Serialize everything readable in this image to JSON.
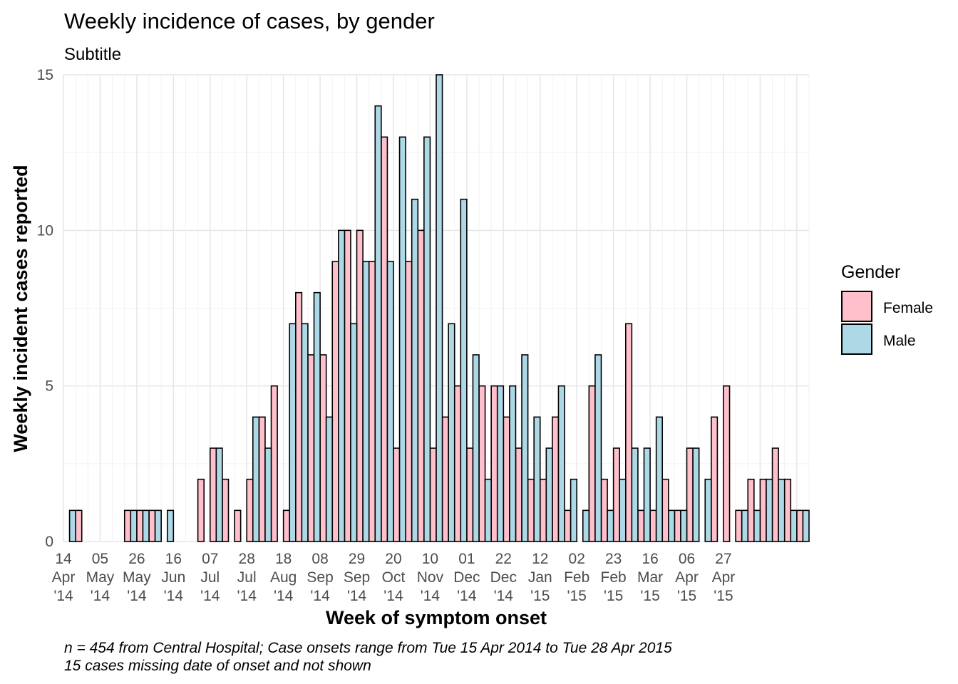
{
  "chart_data": {
    "type": "bar",
    "title": "Weekly incidence of cases, by gender",
    "subtitle": "Subtitle",
    "xlabel": "Week of symptom onset",
    "ylabel": "Weekly incident cases reported",
    "caption_line1": "n = 454 from Central Hospital; Case onsets range from Tue 15 Apr 2014 to Tue 28 Apr 2015",
    "caption_line2": "15 cases missing date of onset and not shown",
    "ylim": [
      0,
      15
    ],
    "y_ticks": [
      "0",
      "5",
      "10",
      "15"
    ],
    "x_ticks": [
      {
        "day": "14",
        "month": "Apr",
        "year": "'14"
      },
      {
        "day": "05",
        "month": "May",
        "year": "'14"
      },
      {
        "day": "26",
        "month": "May",
        "year": "'14"
      },
      {
        "day": "16",
        "month": "Jun",
        "year": "'14"
      },
      {
        "day": "07",
        "month": "Jul",
        "year": "'14"
      },
      {
        "day": "28",
        "month": "Jul",
        "year": "'14"
      },
      {
        "day": "18",
        "month": "Aug",
        "year": "'14"
      },
      {
        "day": "08",
        "month": "Sep",
        "year": "'14"
      },
      {
        "day": "29",
        "month": "Sep",
        "year": "'14"
      },
      {
        "day": "20",
        "month": "Oct",
        "year": "'14"
      },
      {
        "day": "10",
        "month": "Nov",
        "year": "'14"
      },
      {
        "day": "01",
        "month": "Dec",
        "year": "'14"
      },
      {
        "day": "22",
        "month": "Dec",
        "year": "'14"
      },
      {
        "day": "12",
        "month": "Jan",
        "year": "'15"
      },
      {
        "day": "02",
        "month": "Feb",
        "year": "'15"
      },
      {
        "day": "23",
        "month": "Feb",
        "year": "'15"
      },
      {
        "day": "16",
        "month": "Mar",
        "year": "'15"
      },
      {
        "day": "06",
        "month": "Apr",
        "year": "'15"
      },
      {
        "day": "27",
        "month": "Apr",
        "year": "'15"
      }
    ],
    "legend_title": "Gender",
    "legend_position": "right",
    "grid": true,
    "series": [
      {
        "name": "Female",
        "color": "#FFC0CB",
        "values": [
          0,
          1,
          0,
          0,
          0,
          1,
          1,
          1,
          0,
          0,
          0,
          2,
          3,
          2,
          1,
          2,
          4,
          5,
          1,
          8,
          6,
          6,
          9,
          10,
          10,
          9,
          13,
          3,
          9,
          10,
          3,
          4,
          5,
          3,
          5,
          5,
          4,
          3,
          2,
          2,
          4,
          1,
          0,
          5,
          2,
          3,
          7,
          1,
          1,
          2,
          1,
          3,
          0,
          4,
          5,
          1,
          2,
          2,
          3,
          2,
          1
        ]
      },
      {
        "name": "Male",
        "color": "#ADD8E6",
        "values": [
          1,
          0,
          0,
          0,
          0,
          1,
          1,
          1,
          1,
          0,
          0,
          0,
          3,
          0,
          0,
          4,
          3,
          0,
          7,
          7,
          8,
          4,
          10,
          7,
          9,
          14,
          9,
          13,
          11,
          13,
          15,
          7,
          11,
          6,
          2,
          5,
          5,
          6,
          4,
          3,
          5,
          2,
          1,
          6,
          1,
          2,
          3,
          3,
          4,
          1,
          1,
          3,
          2,
          0,
          0,
          1,
          1,
          2,
          2,
          1,
          1
        ]
      }
    ]
  }
}
